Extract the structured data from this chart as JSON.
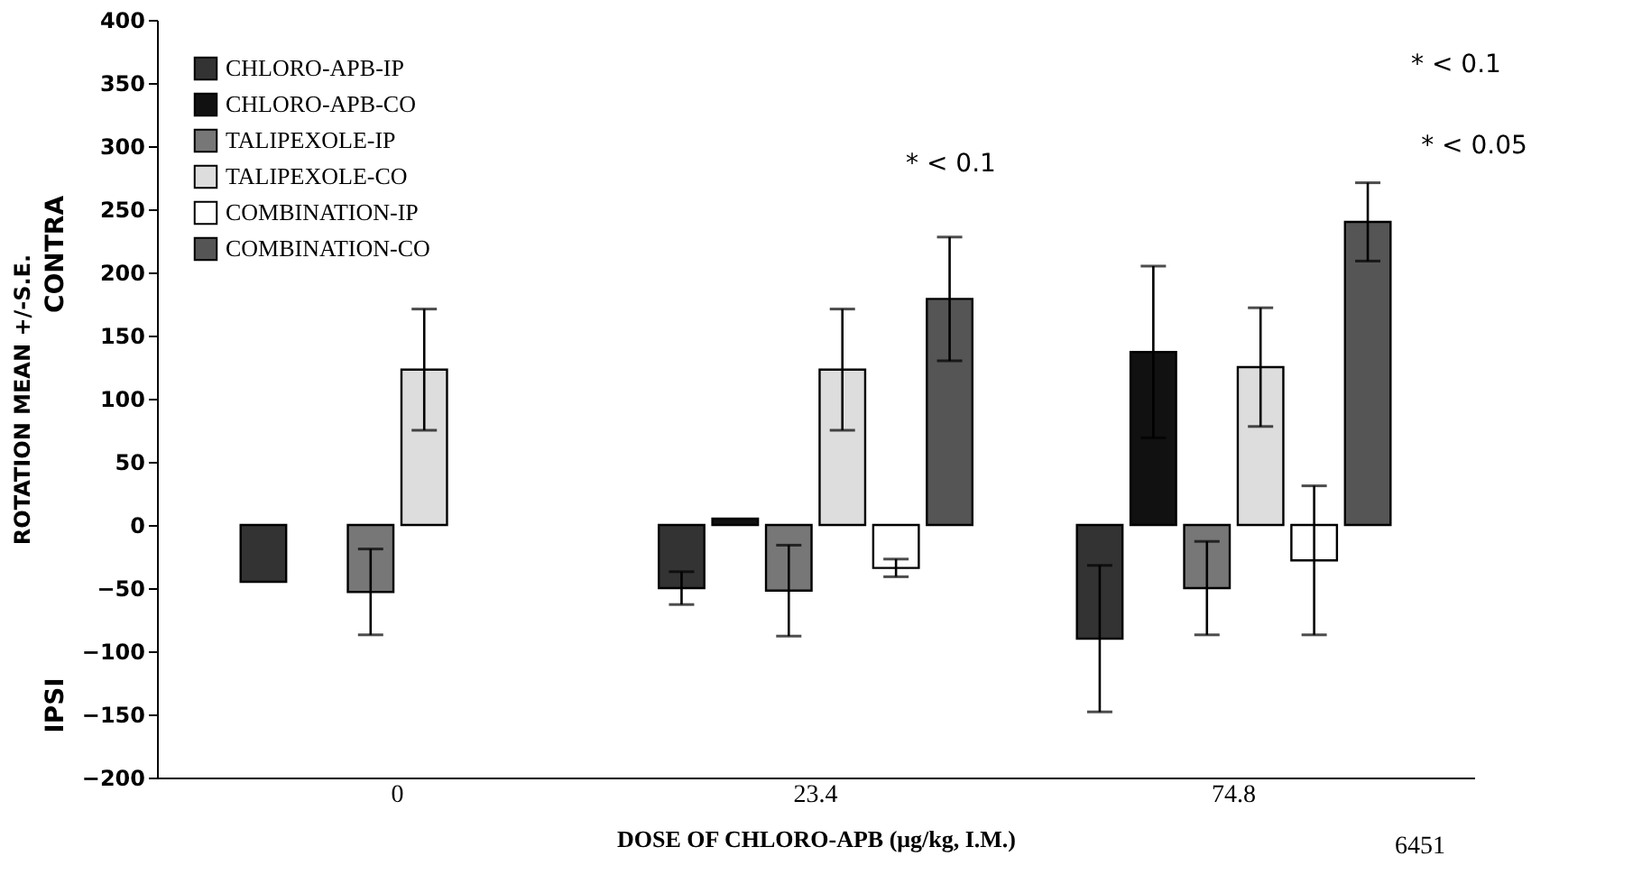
{
  "chart_data": {
    "type": "bar",
    "xlabel": "DOSE OF CHLORO-APB (μg/kg, I.M.)",
    "ylabel": "ROTATION MEAN +/-S.E.",
    "categories": [
      "0",
      "23.4",
      "74.8"
    ],
    "series": [
      {
        "name": "CHLORO-APB-IP",
        "color": "#333333",
        "values": [
          -45,
          -50,
          -90
        ],
        "errors": [
          null,
          13,
          58
        ]
      },
      {
        "name": "CHLORO-APB-CO",
        "color": "#111111",
        "values": [
          null,
          5,
          137
        ],
        "errors": [
          null,
          null,
          68
        ]
      },
      {
        "name": "TALIPEXOLE-IP",
        "color": "#777777",
        "values": [
          -53,
          -52,
          -50
        ],
        "errors": [
          34,
          36,
          37
        ]
      },
      {
        "name": "TALIPEXOLE-CO",
        "color": "#dddddd",
        "values": [
          123,
          123,
          125
        ],
        "errors": [
          48,
          48,
          47
        ]
      },
      {
        "name": "COMBINATION-IP",
        "color": "#ffffff",
        "values": [
          null,
          -34,
          -28
        ],
        "errors": [
          null,
          7,
          59
        ]
      },
      {
        "name": "COMBINATION-CO",
        "color": "#555555",
        "values": [
          null,
          179,
          240
        ],
        "errors": [
          null,
          49,
          31
        ]
      }
    ],
    "ylim": [
      -200,
      400
    ],
    "yticks": [
      -200,
      -150,
      -100,
      -50,
      0,
      50,
      100,
      150,
      200,
      250,
      300,
      350,
      400
    ],
    "grid": false,
    "legend": "top left",
    "annotations": [
      "CONTRA",
      "IPSI",
      "* < 0.1",
      "* < 0.1",
      "* < 0.05",
      "6451"
    ]
  }
}
